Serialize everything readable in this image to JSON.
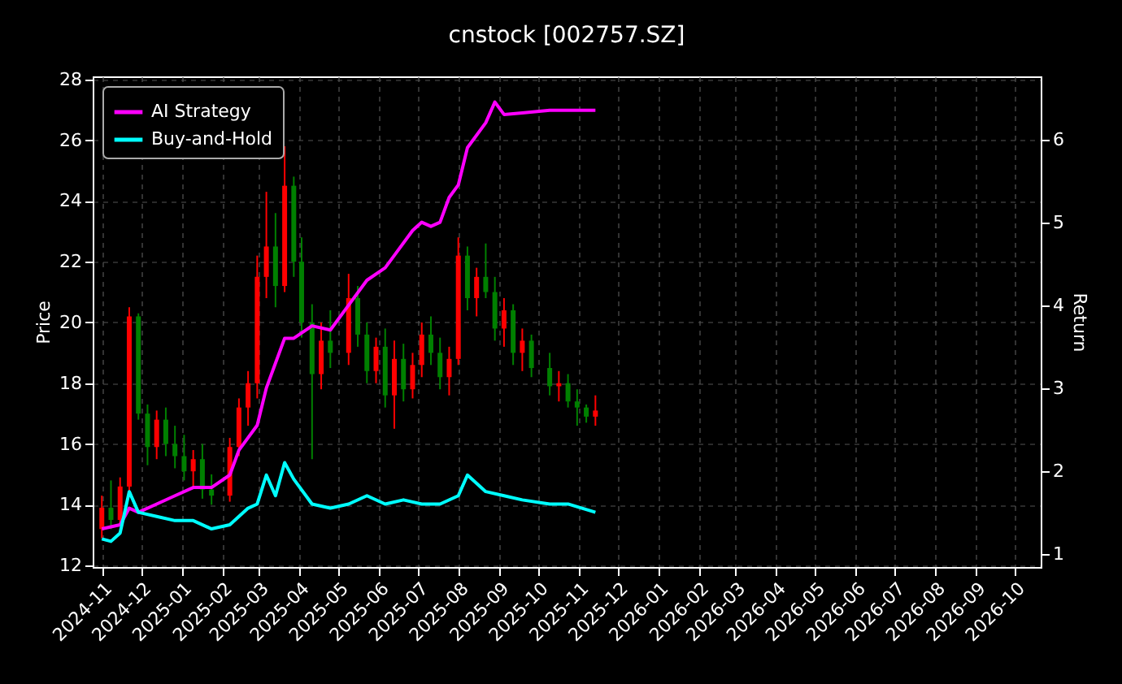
{
  "chart_data": {
    "type": "candlestick",
    "title": "cnstock [002757.SZ]",
    "ylabel": "Price",
    "y2label": "Return",
    "x": [
      "2024-11-01",
      "2024-11-08",
      "2024-11-15",
      "2024-11-22",
      "2024-11-29",
      "2024-12-06",
      "2024-12-13",
      "2024-12-20",
      "2024-12-27",
      "2025-01-03",
      "2025-01-10",
      "2025-01-17",
      "2025-01-24",
      "2025-02-07",
      "2025-02-14",
      "2025-02-21",
      "2025-02-28",
      "2025-03-07",
      "2025-03-14",
      "2025-03-21",
      "2025-03-28",
      "2025-04-03",
      "2025-04-11",
      "2025-04-18",
      "2025-04-25",
      "2025-05-09",
      "2025-05-16",
      "2025-05-23",
      "2025-05-30",
      "2025-06-06",
      "2025-06-13",
      "2025-06-20",
      "2025-06-27",
      "2025-07-04",
      "2025-07-11",
      "2025-07-18",
      "2025-07-25",
      "2025-08-01",
      "2025-08-08",
      "2025-08-15",
      "2025-08-22",
      "2025-08-29",
      "2025-09-05",
      "2025-09-12",
      "2025-09-19",
      "2025-09-26",
      "2025-10-10",
      "2025-10-17",
      "2025-10-24",
      "2025-10-31",
      "2025-11-07",
      "2025-11-14"
    ],
    "ohlc": [
      [
        13.2,
        14.3,
        12.9,
        13.9
      ],
      [
        13.9,
        14.8,
        13.2,
        13.5
      ],
      [
        13.5,
        14.9,
        13.3,
        14.6
      ],
      [
        14.6,
        20.5,
        14.4,
        20.2
      ],
      [
        20.2,
        20.3,
        16.8,
        17.0
      ],
      [
        17.0,
        17.3,
        15.3,
        15.9
      ],
      [
        15.9,
        17.1,
        15.5,
        16.8
      ],
      [
        16.8,
        17.2,
        15.6,
        16.0
      ],
      [
        16.0,
        16.6,
        15.2,
        15.6
      ],
      [
        15.6,
        16.3,
        14.8,
        15.1
      ],
      [
        15.1,
        15.8,
        14.6,
        15.5
      ],
      [
        15.5,
        16.0,
        14.2,
        14.5
      ],
      [
        14.5,
        15.0,
        14.0,
        14.3
      ],
      [
        14.3,
        16.2,
        14.1,
        15.9
      ],
      [
        15.9,
        17.5,
        15.6,
        17.2
      ],
      [
        17.2,
        18.4,
        16.6,
        18.0
      ],
      [
        18.0,
        22.2,
        17.5,
        21.5
      ],
      [
        21.5,
        24.3,
        20.8,
        22.5
      ],
      [
        22.5,
        23.6,
        20.5,
        21.2
      ],
      [
        21.2,
        25.8,
        21.0,
        24.5
      ],
      [
        24.5,
        24.8,
        21.5,
        22.0
      ],
      [
        22.0,
        22.8,
        19.5,
        20.0
      ],
      [
        20.0,
        20.6,
        15.5,
        18.3
      ],
      [
        18.3,
        20.0,
        17.8,
        19.4
      ],
      [
        19.4,
        20.4,
        18.5,
        19.0
      ],
      [
        19.0,
        21.6,
        18.6,
        20.8
      ],
      [
        20.8,
        21.2,
        19.2,
        19.6
      ],
      [
        19.6,
        20.0,
        18.0,
        18.4
      ],
      [
        18.4,
        19.5,
        18.0,
        19.2
      ],
      [
        19.2,
        19.8,
        17.2,
        17.6
      ],
      [
        17.6,
        19.4,
        16.5,
        18.8
      ],
      [
        18.8,
        19.3,
        17.4,
        17.8
      ],
      [
        17.8,
        19.0,
        17.5,
        18.6
      ],
      [
        18.6,
        20.0,
        18.2,
        19.6
      ],
      [
        19.6,
        20.2,
        18.6,
        19.0
      ],
      [
        19.0,
        19.5,
        17.8,
        18.2
      ],
      [
        18.2,
        19.2,
        17.6,
        18.8
      ],
      [
        18.8,
        22.8,
        18.6,
        22.2
      ],
      [
        22.2,
        22.5,
        20.4,
        20.8
      ],
      [
        20.8,
        21.8,
        20.2,
        21.5
      ],
      [
        21.5,
        22.6,
        20.8,
        21.0
      ],
      [
        21.0,
        21.5,
        19.4,
        19.8
      ],
      [
        19.8,
        20.8,
        19.2,
        20.4
      ],
      [
        20.4,
        20.6,
        18.6,
        19.0
      ],
      [
        19.0,
        19.8,
        18.4,
        19.4
      ],
      [
        19.4,
        19.6,
        18.2,
        18.5
      ],
      [
        18.5,
        19.0,
        17.6,
        17.9
      ],
      [
        17.9,
        18.4,
        17.4,
        18.0
      ],
      [
        18.0,
        18.3,
        17.2,
        17.4
      ],
      [
        17.4,
        17.8,
        16.6,
        17.2
      ],
      [
        17.2,
        17.3,
        16.7,
        16.9
      ],
      [
        16.9,
        17.6,
        16.6,
        17.1
      ]
    ],
    "colors": [
      "#ff0000",
      "#008000",
      "#ff0000",
      "#ff0000",
      "#008000",
      "#008000",
      "#ff0000",
      "#008000",
      "#008000",
      "#008000",
      "#ff0000",
      "#008000",
      "#008000",
      "#ff0000",
      "#ff0000",
      "#ff0000",
      "#ff0000",
      "#ff0000",
      "#008000",
      "#ff0000",
      "#008000",
      "#008000",
      "#008000",
      "#ff0000",
      "#008000",
      "#ff0000",
      "#008000",
      "#008000",
      "#ff0000",
      "#008000",
      "#ff0000",
      "#008000",
      "#ff0000",
      "#ff0000",
      "#008000",
      "#008000",
      "#ff0000",
      "#ff0000",
      "#008000",
      "#ff0000",
      "#008000",
      "#008000",
      "#ff0000",
      "#008000",
      "#ff0000",
      "#008000",
      "#008000",
      "#ff0000",
      "#008000",
      "#008000",
      "#008000",
      "#ff0000"
    ],
    "series": [
      {
        "name": "AI Strategy",
        "type": "line",
        "axis": "y2",
        "color": "#ff00ff",
        "x": [
          "2024-11-01",
          "2024-11-15",
          "2024-11-22",
          "2024-11-29",
          "2024-12-13",
          "2024-12-27",
          "2025-01-10",
          "2025-01-24",
          "2025-02-07",
          "2025-02-14",
          "2025-02-28",
          "2025-03-07",
          "2025-03-14",
          "2025-03-21",
          "2025-03-28",
          "2025-04-11",
          "2025-04-25",
          "2025-05-09",
          "2025-05-23",
          "2025-06-06",
          "2025-06-13",
          "2025-06-27",
          "2025-07-04",
          "2025-07-11",
          "2025-07-18",
          "2025-07-25",
          "2025-08-01",
          "2025-08-08",
          "2025-08-22",
          "2025-08-29",
          "2025-09-05",
          "2025-09-19",
          "2025-10-10",
          "2025-11-14"
        ],
        "values": [
          1.3,
          1.35,
          1.55,
          1.5,
          1.6,
          1.7,
          1.8,
          1.8,
          1.95,
          2.25,
          2.55,
          3.0,
          3.3,
          3.6,
          3.6,
          3.75,
          3.7,
          4.0,
          4.3,
          4.45,
          4.6,
          4.9,
          5.0,
          4.95,
          5.0,
          5.3,
          5.45,
          5.9,
          6.2,
          6.45,
          6.3,
          6.32,
          6.35,
          6.35
        ]
      },
      {
        "name": "Buy-and-Hold",
        "type": "line",
        "axis": "y2",
        "color": "#00ffff",
        "x": [
          "2024-11-01",
          "2024-11-08",
          "2024-11-15",
          "2024-11-22",
          "2024-11-29",
          "2024-12-13",
          "2024-12-27",
          "2025-01-10",
          "2025-01-24",
          "2025-02-07",
          "2025-02-21",
          "2025-02-28",
          "2025-03-07",
          "2025-03-14",
          "2025-03-21",
          "2025-03-28",
          "2025-04-11",
          "2025-04-25",
          "2025-05-09",
          "2025-05-23",
          "2025-06-06",
          "2025-06-20",
          "2025-07-04",
          "2025-07-18",
          "2025-08-01",
          "2025-08-08",
          "2025-08-22",
          "2025-09-05",
          "2025-09-19",
          "2025-10-10",
          "2025-10-24",
          "2025-11-14"
        ],
        "values": [
          1.18,
          1.15,
          1.25,
          1.75,
          1.5,
          1.45,
          1.4,
          1.4,
          1.3,
          1.35,
          1.55,
          1.6,
          1.95,
          1.7,
          2.1,
          1.9,
          1.6,
          1.55,
          1.6,
          1.7,
          1.6,
          1.65,
          1.6,
          1.6,
          1.7,
          1.95,
          1.75,
          1.7,
          1.65,
          1.6,
          1.6,
          1.5
        ]
      }
    ],
    "xlim": [
      "2024-10-25",
      "2026-10-21"
    ],
    "xticks": [
      "2024-11",
      "2024-12",
      "2025-01",
      "2025-02",
      "2025-03",
      "2025-04",
      "2025-05",
      "2025-06",
      "2025-07",
      "2025-08",
      "2025-09",
      "2025-10",
      "2025-11",
      "2025-12",
      "2026-01",
      "2026-02",
      "2026-03",
      "2026-04",
      "2026-05",
      "2026-06",
      "2026-07",
      "2026-08",
      "2026-09",
      "2026-10"
    ],
    "ylim": [
      11.95,
      28.1
    ],
    "yticks": [
      12,
      14,
      16,
      18,
      20,
      22,
      24,
      26,
      28
    ],
    "y2lim": [
      0.84,
      6.76
    ],
    "y2ticks": [
      1,
      2,
      3,
      4,
      5,
      6
    ],
    "grid": true,
    "legend": "top left"
  }
}
